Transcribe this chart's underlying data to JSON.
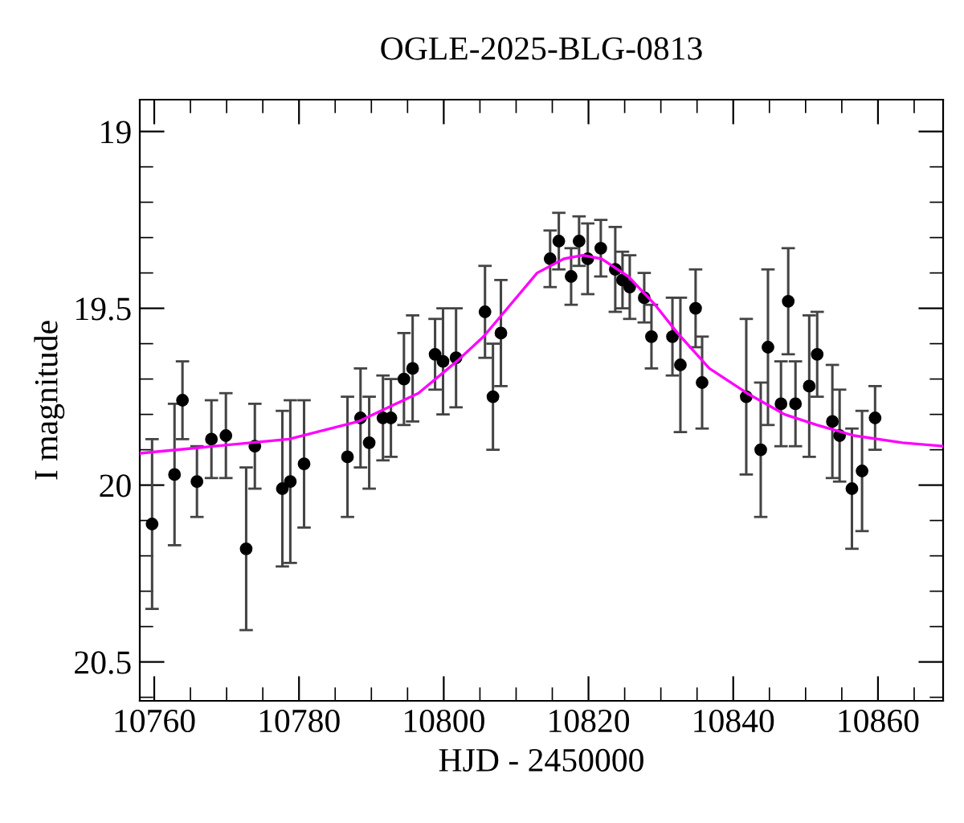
{
  "chart_data": {
    "type": "scatter",
    "title": "OGLE-2025-BLG-0813",
    "xlabel": "HJD - 2450000",
    "ylabel": "I magnitude",
    "xlim": [
      10758,
      10869
    ],
    "ylim": [
      20.61,
      18.91
    ],
    "xticks": [
      10760,
      10780,
      10800,
      10820,
      10840,
      10860
    ],
    "yticks": [
      19,
      19.5,
      20,
      20.5
    ],
    "grid": false,
    "legend": false,
    "series": [
      {
        "color": "#000000",
        "marker": "circle",
        "x": [
          10759.7,
          10762.8,
          10763.9,
          10765.9,
          10767.9,
          10769.9,
          10772.7,
          10773.9,
          10777.7,
          10778.8,
          10780.7,
          10786.7,
          10788.5,
          10789.7,
          10791.6,
          10792.7,
          10794.5,
          10795.7,
          10798.8,
          10799.9,
          10801.7,
          10805.7,
          10806.8,
          10807.9,
          10814.7,
          10815.9,
          10817.6,
          10818.7,
          10819.9,
          10821.7,
          10823.7,
          10824.7,
          10825.7,
          10827.7,
          10828.7,
          10831.6,
          10832.7,
          10834.8,
          10835.7,
          10841.8,
          10843.8,
          10844.8,
          10846.6,
          10847.6,
          10848.6,
          10850.5,
          10851.6,
          10853.7,
          10854.7,
          10856.4,
          10857.8,
          10859.6
        ],
        "values": [
          20.11,
          19.97,
          19.76,
          19.99,
          19.87,
          19.86,
          20.18,
          19.89,
          20.01,
          19.99,
          19.94,
          19.92,
          19.81,
          19.88,
          19.81,
          19.81,
          19.7,
          19.67,
          19.63,
          19.65,
          19.64,
          19.51,
          19.75,
          19.57,
          19.36,
          19.31,
          19.41,
          19.31,
          19.36,
          19.33,
          19.39,
          19.42,
          19.44,
          19.47,
          19.58,
          19.58,
          19.66,
          19.5,
          19.71,
          19.75,
          19.9,
          19.61,
          19.77,
          19.48,
          19.77,
          19.72,
          19.63,
          19.82,
          19.86,
          20.01,
          19.96,
          19.81
        ],
        "errors": [
          0.24,
          0.2,
          0.11,
          0.1,
          0.11,
          0.12,
          0.23,
          0.12,
          0.22,
          0.23,
          0.18,
          0.17,
          0.14,
          0.13,
          0.12,
          0.11,
          0.13,
          0.15,
          0.1,
          0.15,
          0.14,
          0.13,
          0.15,
          0.15,
          0.08,
          0.08,
          0.08,
          0.07,
          0.1,
          0.08,
          0.12,
          0.08,
          0.09,
          0.07,
          0.09,
          0.11,
          0.19,
          0.11,
          0.13,
          0.22,
          0.19,
          0.22,
          0.12,
          0.15,
          0.12,
          0.2,
          0.12,
          0.16,
          0.13,
          0.17,
          0.17,
          0.09
        ]
      },
      {
        "type": "line",
        "color": "#ff00ff",
        "line_style": "solid",
        "marker": "none",
        "x": [
          10758,
          10778.6,
          10788.2,
          10796.5,
          10801.8,
          10805.5,
          10809.2,
          10812.9,
          10816.6,
          10819.2,
          10821.8,
          10825.5,
          10829.2,
          10832.3,
          10836.7,
          10841.9,
          10847.1,
          10851.6,
          10856.7,
          10863.4,
          10869
        ],
        "values": [
          19.91,
          19.87,
          19.82,
          19.74,
          19.65,
          19.58,
          19.49,
          19.4,
          19.36,
          19.35,
          19.36,
          19.41,
          19.49,
          19.57,
          19.67,
          19.74,
          19.8,
          19.83,
          19.86,
          19.88,
          19.89
        ]
      }
    ]
  }
}
